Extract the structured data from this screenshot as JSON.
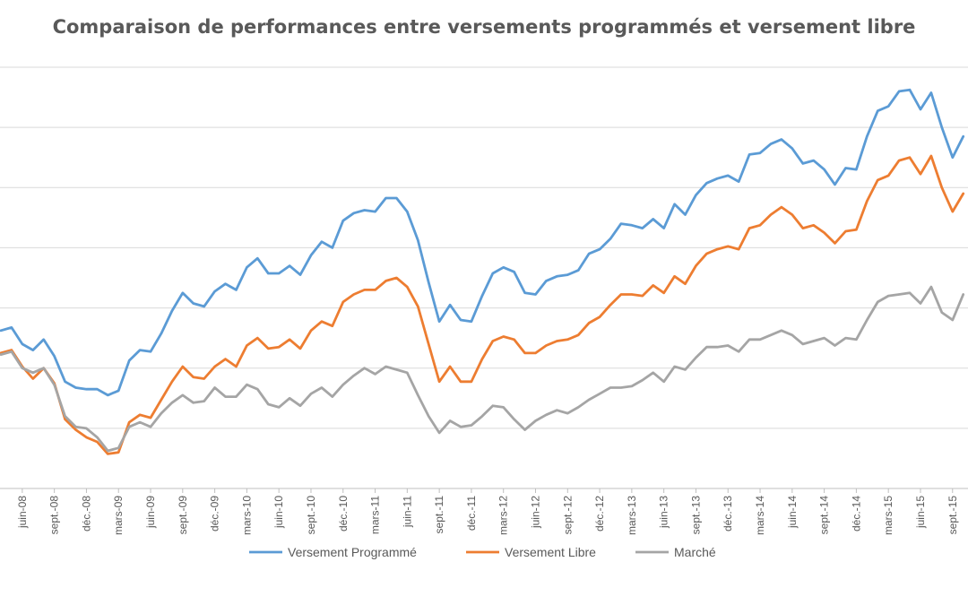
{
  "chart_data": {
    "type": "line",
    "title": "Comparaison de performances entre  versements programmés et versement libre",
    "xlabel": "",
    "ylabel": "",
    "grid": true,
    "legend_position": "bottom",
    "x_tick_labels": [
      "juin-08",
      "sept.-08",
      "déc.-08",
      "mars-09",
      "juin-09",
      "sept.-09",
      "déc.-09",
      "mars-10",
      "juin-10",
      "sept.-10",
      "déc.-10",
      "mars-11",
      "juin-11",
      "sept.-11",
      "déc.-11",
      "mars-12",
      "juin-12",
      "sept.-12",
      "déc.-12",
      "mars-13",
      "juin-13",
      "sept.-13",
      "déc.-13",
      "mars-14",
      "juin-14",
      "sept.-14",
      "déc.-14",
      "mars-15",
      "juin-15",
      "sept.-15"
    ],
    "series": [
      {
        "name": "Versement Programmé",
        "color": "#5B9BD5",
        "values": [
          52.5,
          53.5,
          48.0,
          46.0,
          49.5,
          44.0,
          35.5,
          33.5,
          33.0,
          33.0,
          31.0,
          32.5,
          42.5,
          46.0,
          45.5,
          51.5,
          59.0,
          65.0,
          61.5,
          60.5,
          65.5,
          68.0,
          66.0,
          73.5,
          76.5,
          71.5,
          71.5,
          74.0,
          71.0,
          77.5,
          82.0,
          80.0,
          89.0,
          91.5,
          92.5,
          92.0,
          96.5,
          96.5,
          92.0,
          82.5,
          68.5,
          55.5,
          61.0,
          56.0,
          55.5,
          64.0,
          71.5,
          73.5,
          72.0,
          65.0,
          64.5,
          69.0,
          70.5,
          71.0,
          72.5,
          78.0,
          79.5,
          83.0,
          88.0,
          87.5,
          86.5,
          89.5,
          86.5,
          94.5,
          91.0,
          97.5,
          101.5,
          103.0,
          104.0,
          102.0,
          111.0,
          111.5,
          114.5,
          116.0,
          113.0,
          108.0,
          109.0,
          106.0,
          101.0,
          106.5,
          106.0,
          117.0,
          125.5,
          127.0,
          132.0,
          132.5,
          126.0,
          131.5,
          120.0,
          110.0,
          117.0
        ],
        "y_range_note": ""
      },
      {
        "name": "Versement Libre",
        "color": "#ED7D31",
        "values": [
          45.0,
          46.0,
          40.5,
          36.5,
          40.0,
          35.0,
          23.0,
          19.5,
          17.0,
          15.5,
          11.5,
          12.0,
          22.0,
          24.5,
          23.5,
          29.5,
          35.5,
          40.5,
          37.0,
          36.5,
          40.5,
          43.0,
          40.5,
          47.5,
          50.0,
          46.5,
          47.0,
          49.5,
          46.5,
          52.5,
          55.5,
          54.0,
          62.0,
          64.5,
          66.0,
          66.0,
          69.0,
          70.0,
          67.0,
          60.5,
          48.0,
          35.5,
          40.5,
          35.5,
          35.5,
          43.0,
          49.0,
          50.5,
          49.5,
          45.0,
          45.0,
          47.5,
          49.0,
          49.5,
          51.0,
          55.0,
          57.0,
          61.0,
          64.5,
          64.5,
          64.0,
          67.5,
          65.0,
          70.5,
          68.0,
          74.0,
          78.0,
          79.5,
          80.5,
          79.5,
          86.5,
          87.5,
          91.0,
          93.5,
          91.0,
          86.5,
          87.5,
          85.0,
          81.5,
          85.5,
          86.0,
          95.5,
          102.5,
          104.0,
          109.0,
          110.0,
          104.5,
          110.5,
          100.0,
          92.0,
          98.0
        ],
        "y_range_note": ""
      },
      {
        "name": "Marché",
        "color": "#A5A5A5",
        "values": [
          44.5,
          45.5,
          40.0,
          38.5,
          40.0,
          34.5,
          24.0,
          20.5,
          20.0,
          17.0,
          12.5,
          13.5,
          20.5,
          22.0,
          20.5,
          25.0,
          28.5,
          31.0,
          28.5,
          29.0,
          33.5,
          30.5,
          30.5,
          34.5,
          33.0,
          28.0,
          27.0,
          30.0,
          27.5,
          31.5,
          33.5,
          30.5,
          34.5,
          37.5,
          40.0,
          38.0,
          40.5,
          39.5,
          38.5,
          31.0,
          24.0,
          18.5,
          22.5,
          20.5,
          21.0,
          24.0,
          27.5,
          27.0,
          23.0,
          19.5,
          22.5,
          24.5,
          26.0,
          25.0,
          27.0,
          29.5,
          31.5,
          33.5,
          33.5,
          34.0,
          36.0,
          38.5,
          35.5,
          40.5,
          39.5,
          43.5,
          47.0,
          47.0,
          47.5,
          45.5,
          49.5,
          49.5,
          51.0,
          52.5,
          51.0,
          48.0,
          49.0,
          50.0,
          47.5,
          50.0,
          49.5,
          56.0,
          62.0,
          64.0,
          64.5,
          65.0,
          61.5,
          67.0,
          58.5,
          56.0,
          64.5
        ],
        "y_range_note": ""
      }
    ]
  }
}
